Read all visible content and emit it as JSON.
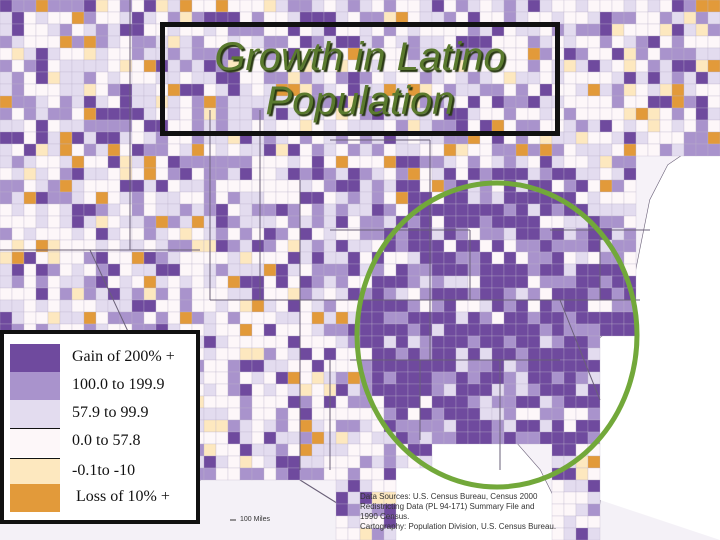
{
  "title": {
    "line1": "Growth in Latino",
    "line2": "Population"
  },
  "legend": {
    "items": [
      {
        "label": "Gain of 200% +",
        "color": "#6f4a9e"
      },
      {
        "label": "100.0 to 199.9",
        "color": "#a993cc"
      },
      {
        "label": "57.9 to 99.9",
        "color": "#e3dcef"
      },
      {
        "label": "0.0 to 57.8",
        "color": "#fdf7f9"
      },
      {
        "label": "-0.1to -10",
        "color": "#fde8bf"
      },
      {
        "label": "Loss of 10% +",
        "color": "#e29a3a"
      }
    ]
  },
  "source": {
    "line1": "Data Sources: U.S. Census Bureau, Census 2000",
    "line2": "Redistricting Data (PL 94-171) Summary File and",
    "line3": "1990 Census.",
    "line4": "Cartography: Population Division, U.S. Census Bureau."
  },
  "scale_label": "100 Miles",
  "highlight": {
    "color": "#72a83a"
  },
  "map_colors": {
    "land": "#f6f2f8",
    "lake": "#d6dfe8",
    "border": "#bdb3c9",
    "state_border": "#6a6078"
  }
}
